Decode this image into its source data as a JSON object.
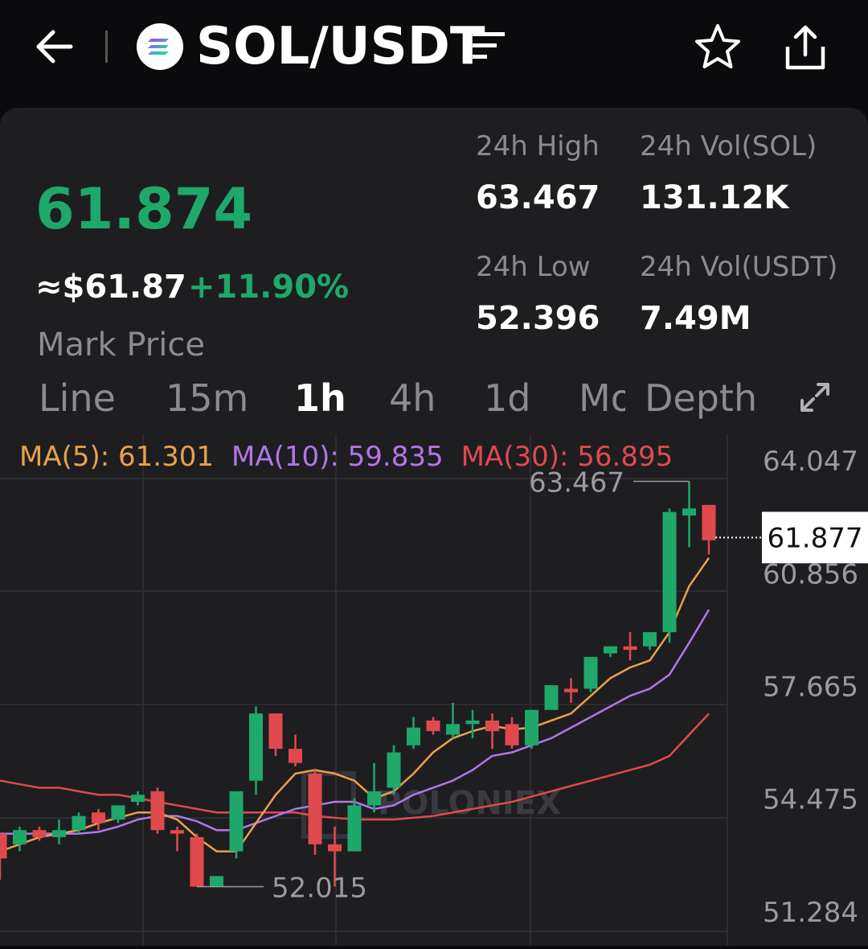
{
  "header": {
    "pair": "SOL/USDT",
    "icons": [
      "back-arrow-icon",
      "solana-logo-icon",
      "menu-lines-icon",
      "star-icon",
      "share-icon"
    ]
  },
  "ticker": {
    "price": "61.874",
    "usd_price": "≈$61.87",
    "change": "+11.90%",
    "mark_label": "Mark Price",
    "high_label": "24h High",
    "high_value": "63.467",
    "low_label": "24h Low",
    "low_value": "52.396",
    "vol_base_label": "24h Vol(SOL)",
    "vol_base_value": "131.12K",
    "vol_quote_label": "24h Vol(USDT)",
    "vol_quote_value": "7.49M"
  },
  "tabs": [
    "Line",
    "15m",
    "1h",
    "4h",
    "1d",
    "Mo",
    "Depth"
  ],
  "active_tab": "1h",
  "colors": {
    "up": "#1ea86b",
    "down": "#e04a4f",
    "ma5": "#e8a14a",
    "ma10": "#b277e6",
    "ma30": "#e04a4f"
  },
  "chart_data": {
    "type": "candlestick",
    "interval": "1h",
    "ma_legend": {
      "ma5": "MA(5): 61.301",
      "ma10": "MA(10): 59.835",
      "ma30": "MA(30): 56.895"
    },
    "y_ticks": [
      "64.047",
      "60.856",
      "57.665",
      "54.475",
      "51.284"
    ],
    "y_tick_values": [
      64.047,
      60.856,
      57.665,
      54.475,
      51.284
    ],
    "ylim": [
      51.284,
      64.047
    ],
    "current_price_label": "61.877",
    "current_price": 61.877,
    "high_annotation": "63.467",
    "low_annotation": "52.015",
    "watermark": "POLONIEX",
    "candles": [
      {
        "o": 53.5,
        "h": 53.5,
        "c": 52.8,
        "l": 52.2
      },
      {
        "o": 53.2,
        "h": 53.7,
        "c": 53.6,
        "l": 53.0
      },
      {
        "o": 53.6,
        "h": 53.7,
        "c": 53.4,
        "l": 53.3
      },
      {
        "o": 53.4,
        "h": 53.9,
        "c": 53.6,
        "l": 53.2
      },
      {
        "o": 53.6,
        "h": 54.1,
        "c": 54.0,
        "l": 53.5
      },
      {
        "o": 54.1,
        "h": 54.2,
        "c": 53.8,
        "l": 53.6
      },
      {
        "o": 53.9,
        "h": 54.3,
        "c": 54.3,
        "l": 53.8
      },
      {
        "o": 54.4,
        "h": 54.7,
        "c": 54.6,
        "l": 54.3
      },
      {
        "o": 54.7,
        "h": 54.8,
        "c": 53.6,
        "l": 53.5
      },
      {
        "o": 53.6,
        "h": 53.7,
        "c": 53.5,
        "l": 53.0
      },
      {
        "o": 53.4,
        "h": 53.5,
        "c": 52.0,
        "l": 52.0
      },
      {
        "o": 52.0,
        "h": 52.3,
        "c": 52.3,
        "l": 52.0
      },
      {
        "o": 53.0,
        "h": 54.7,
        "c": 54.7,
        "l": 52.8
      },
      {
        "o": 55.0,
        "h": 57.1,
        "c": 56.9,
        "l": 54.6
      },
      {
        "o": 56.9,
        "h": 56.9,
        "c": 55.9,
        "l": 55.7
      },
      {
        "o": 55.9,
        "h": 56.3,
        "c": 55.5,
        "l": 55.4
      },
      {
        "o": 55.2,
        "h": 55.3,
        "c": 53.2,
        "l": 52.9
      },
      {
        "o": 53.2,
        "h": 53.7,
        "c": 53.0,
        "l": 52.0
      },
      {
        "o": 53.0,
        "h": 54.5,
        "c": 54.3,
        "l": 53.0
      },
      {
        "o": 54.3,
        "h": 55.5,
        "c": 54.7,
        "l": 54.1
      },
      {
        "o": 54.8,
        "h": 56.0,
        "c": 55.8,
        "l": 54.6
      },
      {
        "o": 56.0,
        "h": 56.8,
        "c": 56.5,
        "l": 55.9
      },
      {
        "o": 56.7,
        "h": 56.8,
        "c": 56.4,
        "l": 56.3
      },
      {
        "o": 56.3,
        "h": 57.2,
        "c": 56.6,
        "l": 56.2
      },
      {
        "o": 56.6,
        "h": 57.0,
        "c": 56.7,
        "l": 56.2
      },
      {
        "o": 56.7,
        "h": 56.9,
        "c": 56.4,
        "l": 55.9
      },
      {
        "o": 56.6,
        "h": 56.8,
        "c": 56.0,
        "l": 55.9
      },
      {
        "o": 56.0,
        "h": 57.0,
        "c": 57.0,
        "l": 55.9
      },
      {
        "o": 57.0,
        "h": 57.7,
        "c": 57.7,
        "l": 57.0
      },
      {
        "o": 57.6,
        "h": 57.9,
        "c": 57.5,
        "l": 57.2
      },
      {
        "o": 57.6,
        "h": 58.5,
        "c": 58.5,
        "l": 57.5
      },
      {
        "o": 58.6,
        "h": 58.8,
        "c": 58.8,
        "l": 58.5
      },
      {
        "o": 58.8,
        "h": 59.2,
        "c": 58.7,
        "l": 58.4
      },
      {
        "o": 58.8,
        "h": 59.2,
        "c": 59.2,
        "l": 58.7
      },
      {
        "o": 59.2,
        "h": 62.7,
        "c": 62.6,
        "l": 58.9
      },
      {
        "o": 62.5,
        "h": 63.467,
        "c": 62.7,
        "l": 61.6
      },
      {
        "o": 62.8,
        "h": 62.8,
        "c": 61.8,
        "l": 61.4
      }
    ],
    "ma5": [
      53.0,
      53.2,
      53.4,
      53.5,
      53.6,
      53.8,
      53.95,
      54.1,
      54.1,
      53.9,
      53.4,
      53.0,
      53.0,
      53.8,
      54.6,
      55.2,
      55.3,
      55.2,
      55.0,
      54.5,
      54.7,
      55.2,
      55.8,
      56.2,
      56.4,
      56.55,
      56.45,
      56.5,
      56.7,
      56.9,
      57.4,
      57.9,
      58.2,
      58.4,
      59.2,
      60.5,
      61.301
    ],
    "ma10": [
      53.5,
      53.5,
      53.5,
      53.5,
      53.5,
      53.55,
      53.7,
      53.9,
      54.0,
      54.0,
      53.85,
      53.6,
      53.6,
      53.8,
      54.0,
      54.2,
      54.3,
      54.4,
      54.4,
      54.2,
      54.3,
      54.6,
      54.8,
      55.0,
      55.3,
      55.7,
      55.8,
      56.0,
      56.2,
      56.5,
      56.8,
      57.1,
      57.4,
      57.6,
      58.0,
      58.9,
      59.835
    ],
    "ma30": [
      55.0,
      54.9,
      54.8,
      54.8,
      54.7,
      54.6,
      54.6,
      54.5,
      54.4,
      54.3,
      54.2,
      54.1,
      54.1,
      54.1,
      54.1,
      54.1,
      54.0,
      53.95,
      53.9,
      53.9,
      53.9,
      53.95,
      54.0,
      54.1,
      54.2,
      54.3,
      54.4,
      54.55,
      54.7,
      54.85,
      55.0,
      55.15,
      55.3,
      55.45,
      55.7,
      56.3,
      56.895
    ]
  }
}
